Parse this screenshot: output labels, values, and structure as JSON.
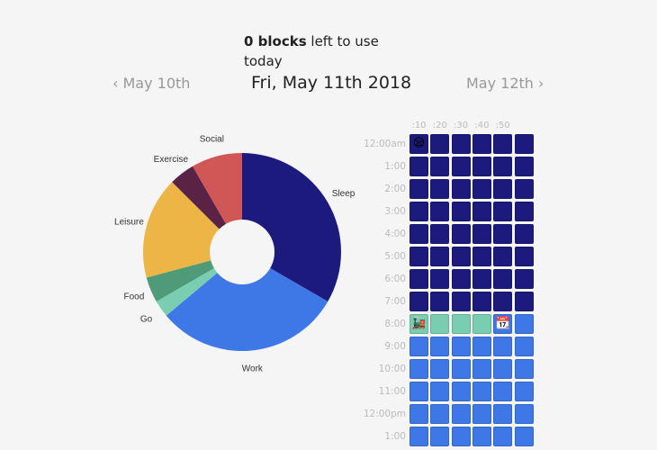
{
  "header": {
    "blocks_left_bold": "0 blocks",
    "blocks_left_rest": " left to use today",
    "prev_day": "May 10th",
    "current_day": "Fri, May 11th 2018",
    "next_day": "May 12th",
    "prev_icon": "chevron-left-icon",
    "next_icon": "chevron-right-icon"
  },
  "colors": {
    "Sleep": "#1d1a7e",
    "Work": "#3e78e6",
    "Go": "#79cdb0",
    "Food": "#4f9a78",
    "Leisure": "#edb545",
    "Exercise": "#5a2244",
    "Social": "#d05755"
  },
  "chart_data": {
    "type": "pie",
    "donut": true,
    "unit": "blocks",
    "categories": [
      "Sleep",
      "Work",
      "Go",
      "Food",
      "Leisure",
      "Exercise",
      "Social"
    ],
    "values": [
      48,
      44,
      4,
      6,
      24,
      6,
      12
    ]
  },
  "schedule": {
    "column_labels": [
      ":10",
      ":20",
      ":30",
      ":40",
      ":50"
    ],
    "rows": [
      {
        "label": "12:00am",
        "cells": [
          "Sleep",
          "Sleep",
          "Sleep",
          "Sleep",
          "Sleep",
          "Sleep"
        ],
        "emoji": [
          "😪",
          "",
          "",
          "",
          "",
          ""
        ]
      },
      {
        "label": "1:00",
        "cells": [
          "Sleep",
          "Sleep",
          "Sleep",
          "Sleep",
          "Sleep",
          "Sleep"
        ]
      },
      {
        "label": "2:00",
        "cells": [
          "Sleep",
          "Sleep",
          "Sleep",
          "Sleep",
          "Sleep",
          "Sleep"
        ]
      },
      {
        "label": "3:00",
        "cells": [
          "Sleep",
          "Sleep",
          "Sleep",
          "Sleep",
          "Sleep",
          "Sleep"
        ]
      },
      {
        "label": "4:00",
        "cells": [
          "Sleep",
          "Sleep",
          "Sleep",
          "Sleep",
          "Sleep",
          "Sleep"
        ]
      },
      {
        "label": "5:00",
        "cells": [
          "Sleep",
          "Sleep",
          "Sleep",
          "Sleep",
          "Sleep",
          "Sleep"
        ]
      },
      {
        "label": "6:00",
        "cells": [
          "Sleep",
          "Sleep",
          "Sleep",
          "Sleep",
          "Sleep",
          "Sleep"
        ]
      },
      {
        "label": "7:00",
        "cells": [
          "Sleep",
          "Sleep",
          "Sleep",
          "Sleep",
          "Sleep",
          "Sleep"
        ]
      },
      {
        "label": "8:00",
        "cells": [
          "Go",
          "Go",
          "Go",
          "Go",
          "Work",
          "Work"
        ],
        "emoji": [
          "🚂",
          "",
          "",
          "",
          "📆",
          ""
        ]
      },
      {
        "label": "9:00",
        "cells": [
          "Work",
          "Work",
          "Work",
          "Work",
          "Work",
          "Work"
        ]
      },
      {
        "label": "10:00",
        "cells": [
          "Work",
          "Work",
          "Work",
          "Work",
          "Work",
          "Work"
        ]
      },
      {
        "label": "11:00",
        "cells": [
          "Work",
          "Work",
          "Work",
          "Work",
          "Work",
          "Work"
        ]
      },
      {
        "label": "12:00pm",
        "cells": [
          "Work",
          "Work",
          "Work",
          "Work",
          "Work",
          "Work"
        ]
      },
      {
        "label": "1:00",
        "cells": [
          "Work",
          "Work",
          "Work",
          "Work",
          "Work",
          "Work"
        ]
      }
    ]
  }
}
